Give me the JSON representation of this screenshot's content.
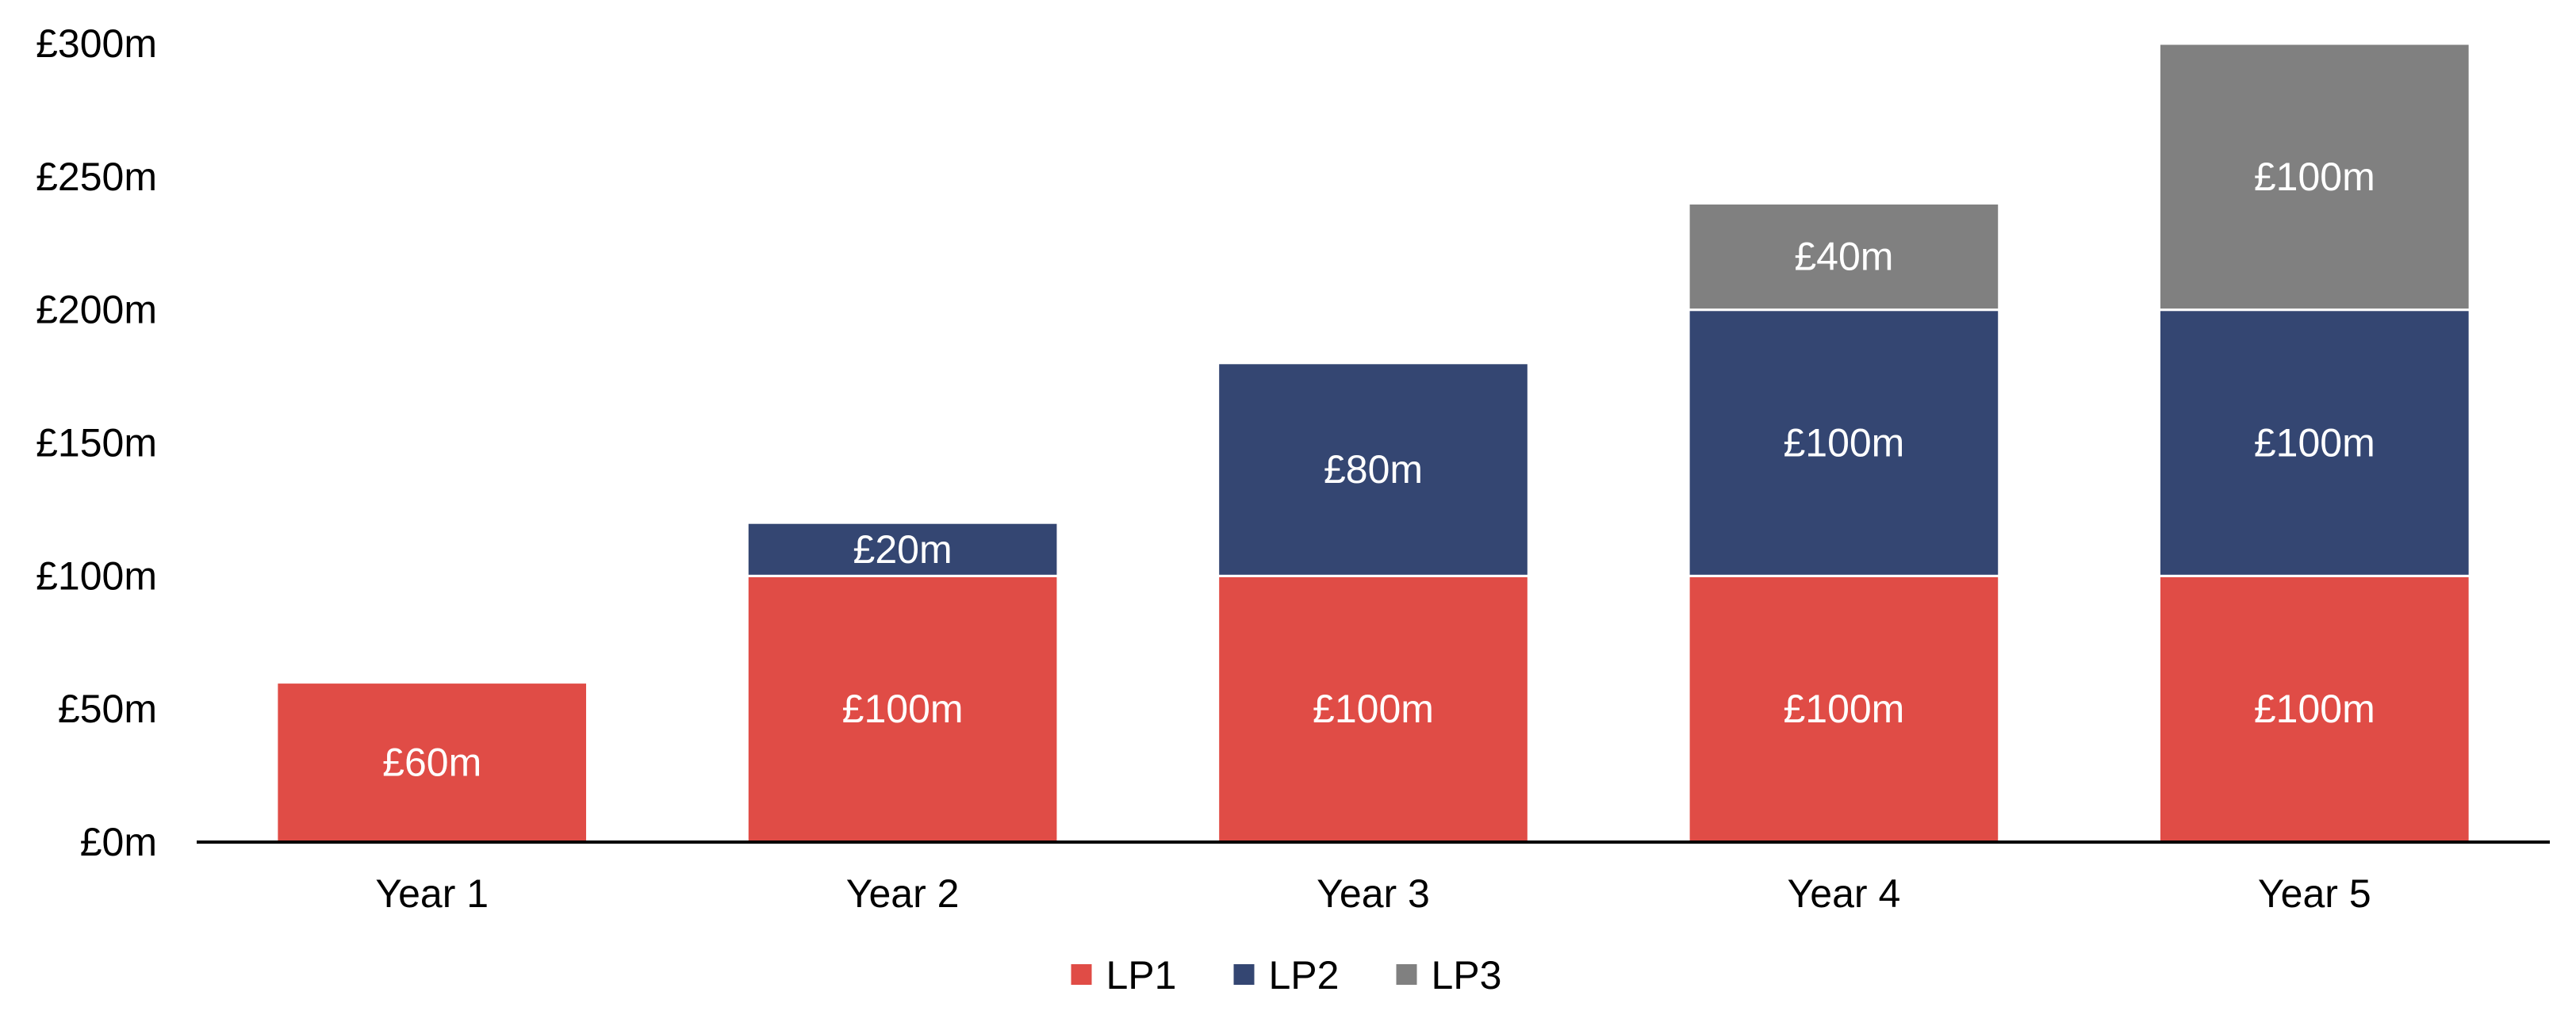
{
  "chart_data": {
    "type": "bar",
    "stacked": true,
    "title": "",
    "xlabel": "",
    "ylabel": "",
    "categories": [
      "Year 1",
      "Year 2",
      "Year 3",
      "Year 4",
      "Year 5"
    ],
    "series": [
      {
        "name": "LP1",
        "color": "#e04c46",
        "values": [
          60,
          100,
          100,
          100,
          100
        ],
        "labels": [
          "£60m",
          "£100m",
          "£100m",
          "£100m",
          "£100m"
        ]
      },
      {
        "name": "LP2",
        "color": "#344672",
        "values": [
          0,
          20,
          80,
          100,
          100
        ],
        "labels": [
          "",
          "£20m",
          "£80m",
          "£100m",
          "£100m"
        ]
      },
      {
        "name": "LP3",
        "color": "#808080",
        "values": [
          0,
          0,
          0,
          40,
          100
        ],
        "labels": [
          "",
          "",
          "",
          "£40m",
          "£100m"
        ]
      }
    ],
    "ylim": [
      0,
      300
    ],
    "yticks": [
      0,
      50,
      100,
      150,
      200,
      250,
      300
    ],
    "ytick_labels": [
      "£0m",
      "£50m",
      "£100m",
      "£150m",
      "£200m",
      "£250m",
      "£300m"
    ],
    "grid": false,
    "legend_position": "bottom-center"
  }
}
